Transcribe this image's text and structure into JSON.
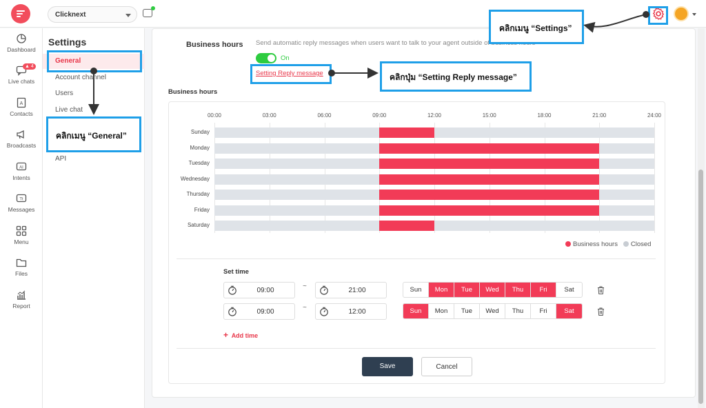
{
  "topbar": {
    "workspace": "Clicknext"
  },
  "nav": [
    {
      "label": "Dashboard",
      "icon": "dashboard-icon"
    },
    {
      "label": "Live chats",
      "icon": "live-chats-icon",
      "badge": "4"
    },
    {
      "label": "Contacts",
      "icon": "contacts-icon"
    },
    {
      "label": "Broadcasts",
      "icon": "broadcasts-icon"
    },
    {
      "label": "Intents",
      "icon": "intents-icon"
    },
    {
      "label": "Messages",
      "icon": "messages-icon"
    },
    {
      "label": "Menu",
      "icon": "menu-icon"
    },
    {
      "label": "Files",
      "icon": "files-icon"
    },
    {
      "label": "Report",
      "icon": "report-icon"
    }
  ],
  "settings_menu": {
    "title": "Settings",
    "items": [
      "General",
      "Account channel",
      "Users",
      "Live chat",
      "API"
    ],
    "active": "General"
  },
  "business_hours": {
    "label": "Business hours",
    "description": "Send automatic reply messages when users want to talk to your agent outside of business hours",
    "toggle_label": "On",
    "reply_link": "Setting Reply message",
    "section_title": "Business hours"
  },
  "chart_data": {
    "type": "bar",
    "hours": [
      "00:00",
      "03:00",
      "06:00",
      "09:00",
      "12:00",
      "15:00",
      "18:00",
      "21:00",
      "24:00"
    ],
    "x_range": [
      0,
      24
    ],
    "categories": [
      "Sunday",
      "Monday",
      "Tuesday",
      "Wednesday",
      "Thursday",
      "Friday",
      "Saturday"
    ],
    "ranges": [
      [
        9,
        12
      ],
      [
        9,
        21
      ],
      [
        9,
        21
      ],
      [
        9,
        21
      ],
      [
        9,
        21
      ],
      [
        9,
        21
      ],
      [
        9,
        12
      ]
    ],
    "legend": [
      "Business hours",
      "Closed"
    ],
    "colors": {
      "open": "#f23b57",
      "closed": "#dfe3e8"
    }
  },
  "set_time": {
    "title": "Set time",
    "tilde": "~",
    "day_names": [
      "Sun",
      "Mon",
      "Tue",
      "Wed",
      "Thu",
      "Fri",
      "Sat"
    ],
    "rows": [
      {
        "start": "09:00",
        "end": "21:00",
        "days": [
          false,
          true,
          true,
          true,
          true,
          true,
          false
        ]
      },
      {
        "start": "09:00",
        "end": "12:00",
        "days": [
          true,
          false,
          false,
          false,
          false,
          false,
          true
        ]
      }
    ],
    "add_time": "Add time"
  },
  "buttons": {
    "save": "Save",
    "cancel": "Cancel"
  },
  "annotations": {
    "settings": "คลิกเมนู “Settings”",
    "reply": "คลิกปุ่ม “Setting Reply message”",
    "general": "คลิกเมนู “General”"
  },
  "colors": {
    "accent": "#f23b57",
    "annotation": "#1e9fe8",
    "toggle": "#2ecc40",
    "save_button": "#2f3f51"
  }
}
